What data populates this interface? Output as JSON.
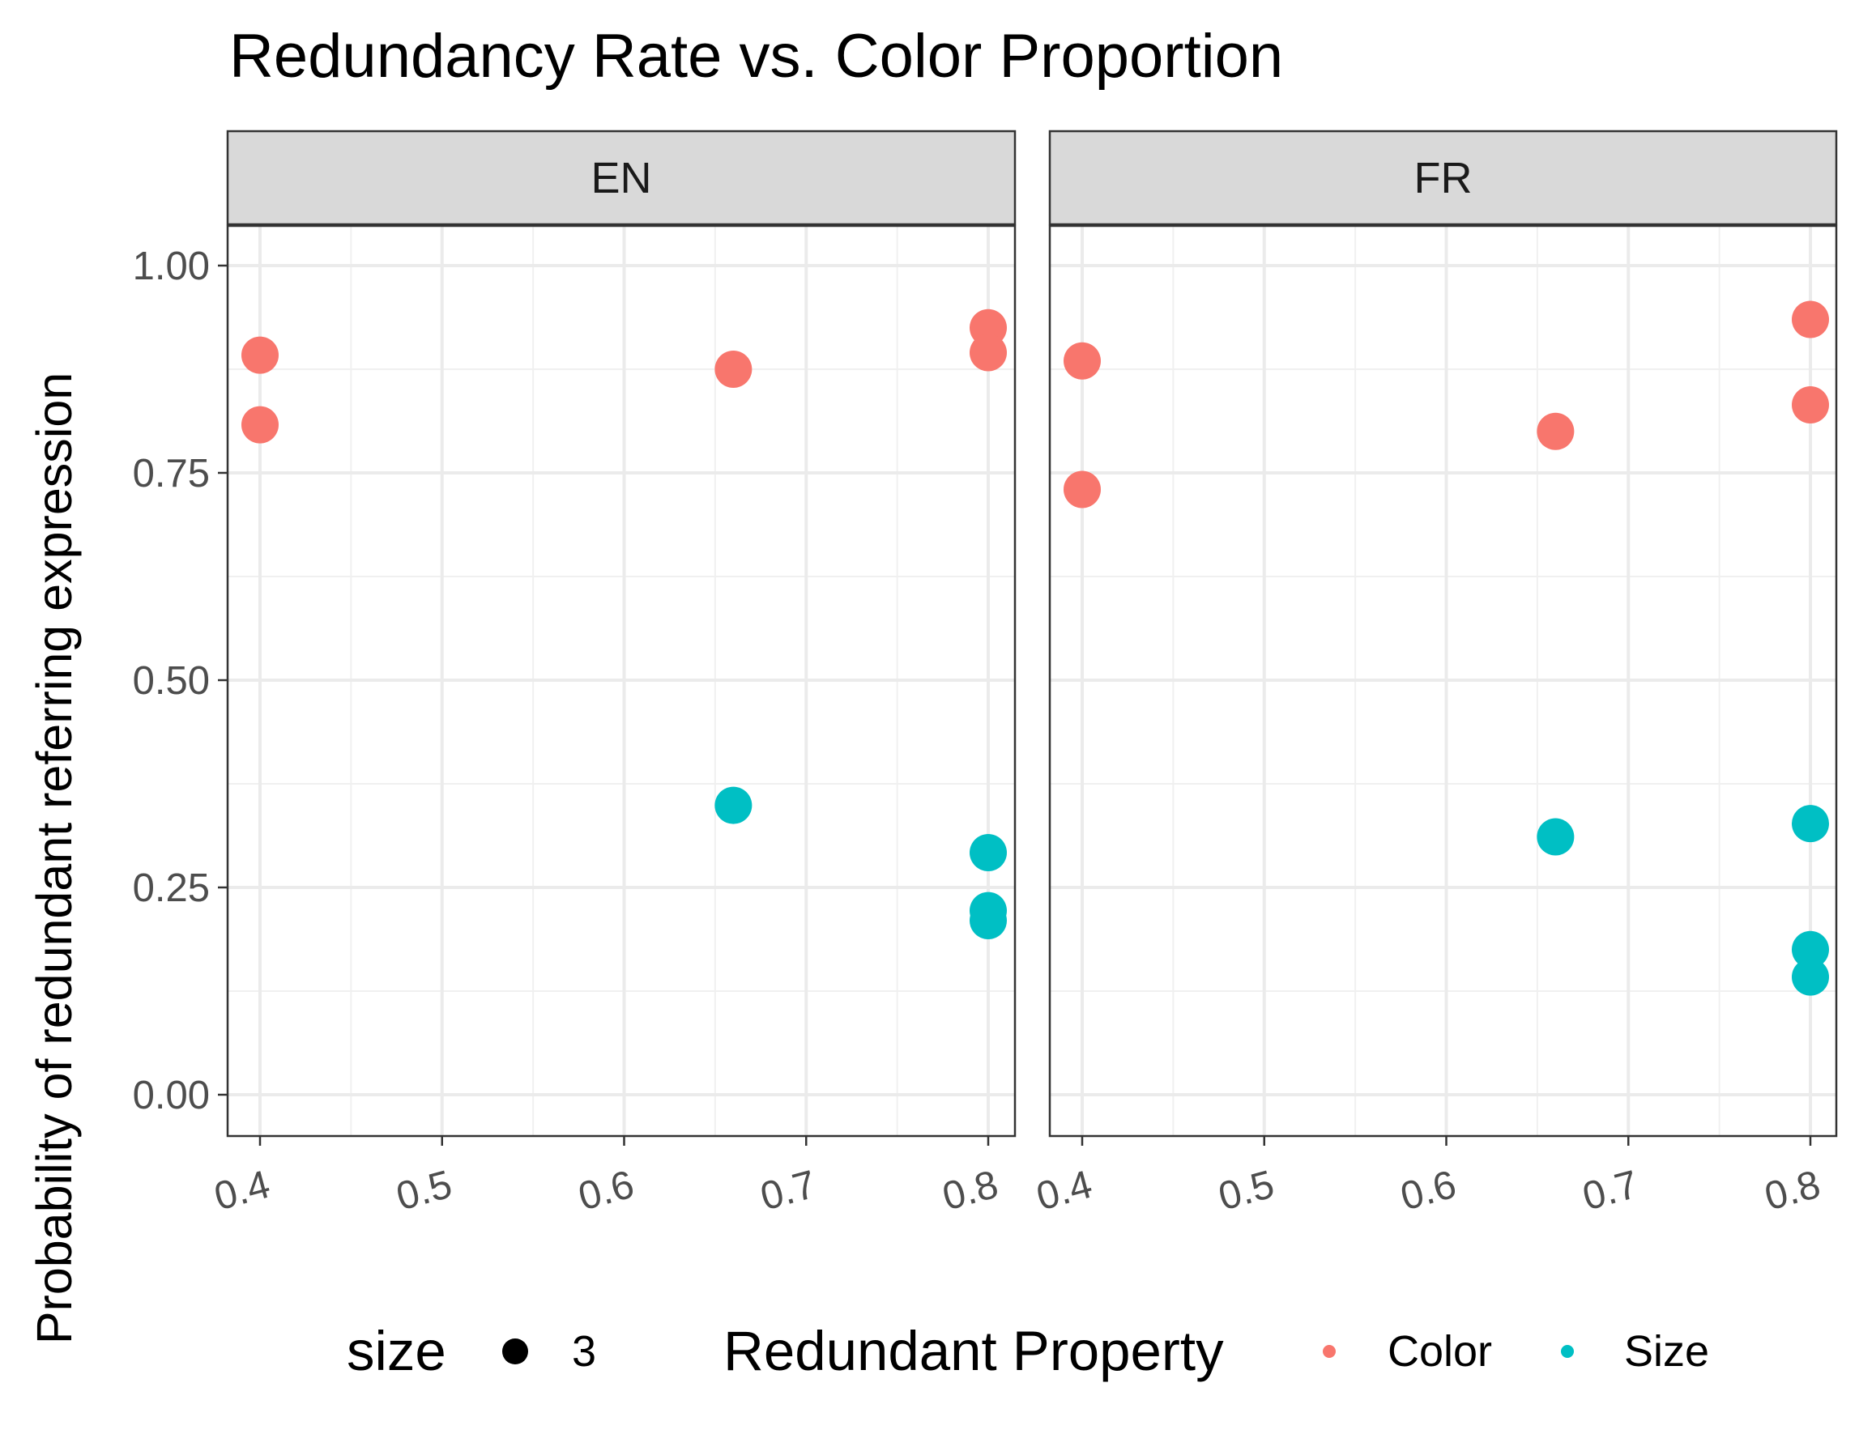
{
  "chart_data": {
    "type": "scatter",
    "title": "Redundancy Rate vs. Color Proportion",
    "xlabel": "",
    "ylabel": "Probability of redundant referring expression",
    "xlim": [
      0.4,
      0.8
    ],
    "ylim": [
      0,
      1
    ],
    "x_ticks": [
      "0.4",
      "0.5",
      "0.6",
      "0.7",
      "0.8"
    ],
    "y_ticks": [
      "0.00",
      "0.25",
      "0.50",
      "0.75",
      "1.00"
    ],
    "grid": true,
    "facets": [
      "EN",
      "FR"
    ],
    "legend": {
      "position": "bottom",
      "size_title": "size",
      "size_value": "3",
      "color_title": "Redundant Property",
      "entries": [
        {
          "name": "Color",
          "color": "#F8766D"
        },
        {
          "name": "Size",
          "color": "#00BFC4"
        }
      ]
    },
    "series": [
      {
        "name": "Color",
        "color": "#F8766D",
        "points": {
          "EN": [
            [
              0.4,
              0.892
            ],
            [
              0.4,
              0.808
            ],
            [
              0.66,
              0.875
            ],
            [
              0.8,
              0.925
            ],
            [
              0.8,
              0.895
            ]
          ],
          "FR": [
            [
              0.4,
              0.885
            ],
            [
              0.4,
              0.73
            ],
            [
              0.66,
              0.8
            ],
            [
              0.8,
              0.935
            ],
            [
              0.8,
              0.832
            ]
          ]
        }
      },
      {
        "name": "Size",
        "color": "#00BFC4",
        "points": {
          "EN": [
            [
              0.66,
              0.349
            ],
            [
              0.8,
              0.292
            ],
            [
              0.8,
              0.222
            ],
            [
              0.8,
              0.21
            ]
          ],
          "FR": [
            [
              0.66,
              0.311
            ],
            [
              0.8,
              0.327
            ],
            [
              0.8,
              0.175
            ],
            [
              0.8,
              0.142
            ]
          ]
        }
      }
    ]
  }
}
